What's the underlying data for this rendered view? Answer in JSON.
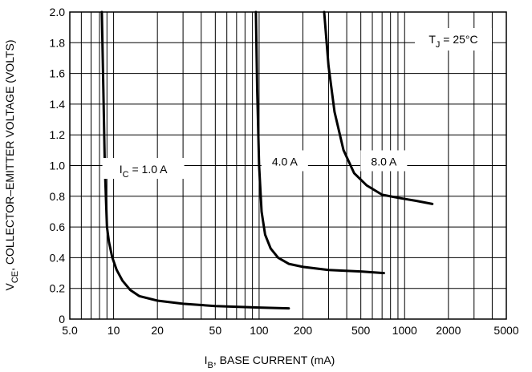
{
  "chart_data": {
    "type": "line",
    "x_scale": "log",
    "xlim": [
      5,
      5000
    ],
    "ylim": [
      0,
      2.0
    ],
    "grid": true,
    "xlabel": {
      "main": "I",
      "sub": "B",
      "rest": ", BASE CURRENT (mA)"
    },
    "ylabel": {
      "main": "V",
      "sub": "CE",
      "rest": ", COLLECTOR–EMITTER VOLTAGE (VOLTS)"
    },
    "x_tick_labels": [
      {
        "value": 5,
        "label": "5.0"
      },
      {
        "value": 10,
        "label": "10"
      },
      {
        "value": 20,
        "label": "20"
      },
      {
        "value": 50,
        "label": "50"
      },
      {
        "value": 100,
        "label": "100"
      },
      {
        "value": 200,
        "label": "200"
      },
      {
        "value": 500,
        "label": "500"
      },
      {
        "value": 1000,
        "label": "1000"
      },
      {
        "value": 2000,
        "label": "2000"
      },
      {
        "value": 5000,
        "label": "5000"
      }
    ],
    "y_ticks": [
      {
        "value": 0,
        "label": "0"
      },
      {
        "value": 0.2,
        "label": "0.2"
      },
      {
        "value": 0.4,
        "label": "0.4"
      },
      {
        "value": 0.6,
        "label": "0.6"
      },
      {
        "value": 0.8,
        "label": "0.8"
      },
      {
        "value": 1.0,
        "label": "1.0"
      },
      {
        "value": 1.2,
        "label": "1.2"
      },
      {
        "value": 1.4,
        "label": "1.4"
      },
      {
        "value": 1.6,
        "label": "1.6"
      },
      {
        "value": 1.8,
        "label": "1.8"
      },
      {
        "value": 2.0,
        "label": "2.0"
      }
    ],
    "annotation": {
      "main": "T",
      "sub": "J",
      "rest": " = 25°C"
    },
    "series": [
      {
        "name": "I_C = 1.0 A",
        "label_parts": {
          "main": "I",
          "sub": "C",
          "rest": " = 1.0 A"
        },
        "x": [
          8.3,
          8.5,
          8.7,
          9.0,
          9.3,
          9.8,
          10.5,
          11.5,
          13,
          15,
          20,
          30,
          50,
          100,
          160
        ],
        "y": [
          2.0,
          1.5,
          1.0,
          0.6,
          0.5,
          0.4,
          0.32,
          0.25,
          0.19,
          0.15,
          0.12,
          0.1,
          0.085,
          0.075,
          0.07
        ]
      },
      {
        "name": "4.0 A",
        "label_parts": {
          "main": "4.0 A",
          "sub": "",
          "rest": ""
        },
        "x": [
          95,
          97,
          100,
          104,
          110,
          120,
          135,
          160,
          200,
          300,
          500,
          720
        ],
        "y": [
          2.0,
          1.5,
          1.0,
          0.7,
          0.55,
          0.46,
          0.4,
          0.36,
          0.34,
          0.32,
          0.31,
          0.3
        ]
      },
      {
        "name": "8.0 A",
        "label_parts": {
          "main": "8.0 A",
          "sub": "",
          "rest": ""
        },
        "x": [
          280,
          300,
          330,
          380,
          450,
          550,
          700,
          900,
          1200,
          1550
        ],
        "y": [
          2.0,
          1.65,
          1.35,
          1.1,
          0.95,
          0.87,
          0.81,
          0.79,
          0.77,
          0.75
        ]
      }
    ]
  }
}
